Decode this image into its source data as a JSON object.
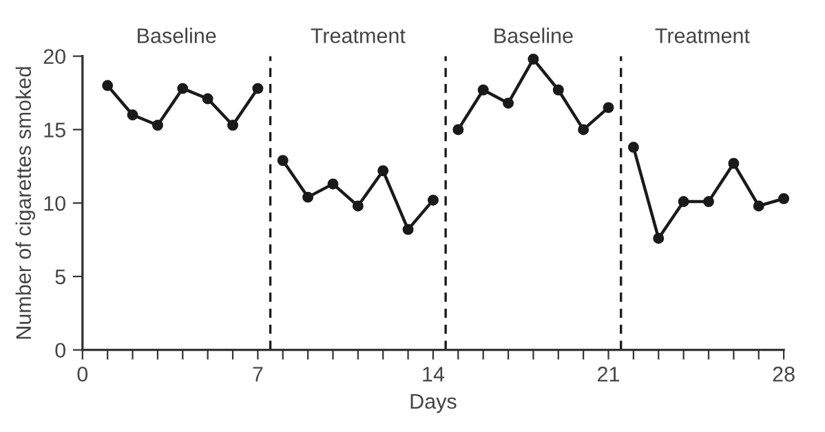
{
  "chart_data": {
    "type": "line",
    "xlabel": "Days",
    "ylabel": "Number of cigarettes smoked",
    "series": [
      {
        "color": "#1a1a1a",
        "x": [
          1,
          2,
          3,
          4,
          5,
          6,
          7
        ],
        "values": [
          18,
          16,
          15.3,
          17.8,
          17.1,
          15.3,
          17.8
        ]
      },
      {
        "color": "#1a1a1a",
        "x": [
          8,
          9,
          10,
          11,
          12,
          13,
          14
        ],
        "values": [
          12.9,
          10.4,
          11.3,
          9.8,
          12.2,
          8.2,
          10.2
        ]
      },
      {
        "color": "#1a1a1a",
        "x": [
          15,
          16,
          17,
          18,
          19,
          20,
          21
        ],
        "values": [
          15,
          17.7,
          16.8,
          19.8,
          17.7,
          15,
          16.5
        ]
      },
      {
        "color": "#1a1a1a",
        "x": [
          22,
          23,
          24,
          25,
          26,
          27,
          28
        ],
        "values": [
          13.8,
          7.6,
          10.1,
          10.1,
          12.7,
          9.8,
          10.3
        ]
      }
    ],
    "marker": "circle",
    "line_style": "solid",
    "grid": false,
    "legend": false,
    "xlim": [
      0,
      28
    ],
    "ylim": [
      0,
      20
    ],
    "xticks": [
      0,
      {
        "value": 1,
        "label": null
      },
      {
        "value": 2,
        "label": null
      },
      {
        "value": 3,
        "label": null
      },
      {
        "value": 4,
        "label": null
      },
      {
        "value": 5,
        "label": null
      },
      {
        "value": 6,
        "label": null
      },
      7,
      {
        "value": 8,
        "label": null
      },
      {
        "value": 9,
        "label": null
      },
      {
        "value": 10,
        "label": null
      },
      {
        "value": 11,
        "label": null
      },
      {
        "value": 12,
        "label": null
      },
      {
        "value": 13,
        "label": null
      },
      14,
      {
        "value": 15,
        "label": null
      },
      {
        "value": 16,
        "label": null
      },
      {
        "value": 17,
        "label": null
      },
      {
        "value": 18,
        "label": null
      },
      {
        "value": 19,
        "label": null
      },
      {
        "value": 20,
        "label": null
      },
      21,
      {
        "value": 22,
        "label": null
      },
      {
        "value": 23,
        "label": null
      },
      {
        "value": 24,
        "label": null
      },
      {
        "value": 25,
        "label": null
      },
      {
        "value": 26,
        "label": null
      },
      {
        "value": 27,
        "label": null
      },
      28
    ],
    "yticks": [
      0,
      5,
      10,
      15,
      20
    ],
    "ref_lines": [
      {
        "axis": "x",
        "value": 7.5,
        "color": "#1a1a1a",
        "line_style": "dashed"
      },
      {
        "axis": "x",
        "value": 14.5,
        "color": "#1a1a1a",
        "line_style": "dashed"
      },
      {
        "axis": "x",
        "value": 21.5,
        "color": "#1a1a1a",
        "line_style": "dashed"
      }
    ],
    "annotations": [
      "Baseline",
      "Treatment",
      "Baseline",
      "Treatment"
    ]
  }
}
